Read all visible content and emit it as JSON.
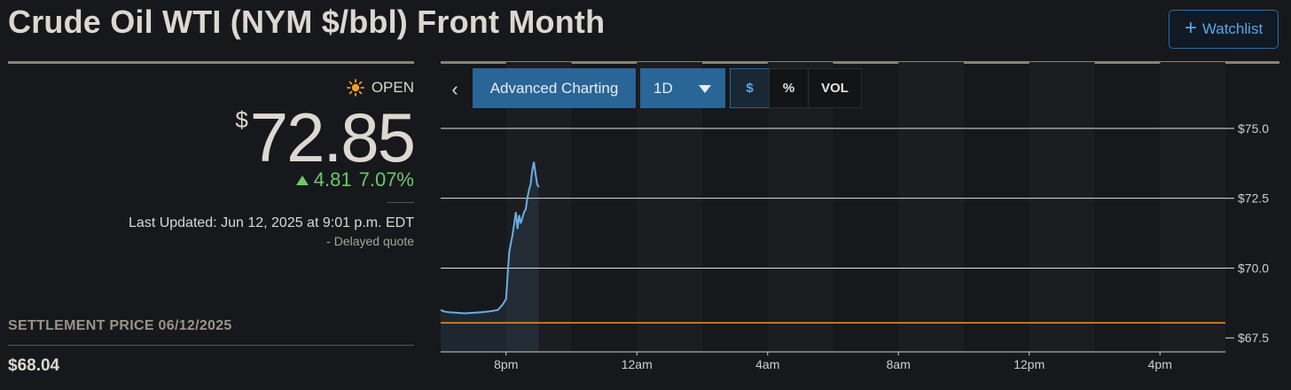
{
  "header": {
    "title": "Crude Oil WTI (NYM $/bbl) Front Month",
    "watchlist_label": "Watchlist",
    "watchlist_plus": "+"
  },
  "quote": {
    "status": "OPEN",
    "currency_symbol": "$",
    "price": "72.85",
    "change": "4.81",
    "change_percent": "7.07%",
    "last_updated": "Last Updated: Jun 12, 2025 at 9:01 p.m. EDT",
    "delayed_note": "-  Delayed quote"
  },
  "settlement": {
    "label": "SETTLEMENT PRICE 06/12/2025",
    "value": "$68.04"
  },
  "toolbar": {
    "back_glyph": "‹",
    "advanced_label": "Advanced Charting",
    "period_label": "1D",
    "buttons": [
      "$",
      "%",
      "VOL"
    ],
    "active_button": "$"
  },
  "colors": {
    "accent": "#2a6597",
    "up": "#6ec86a",
    "line": "#6aaee4",
    "settle_line": "#ff8c1a",
    "gold_rule": "#8a826f"
  },
  "chart_data": {
    "type": "line",
    "x_ticks": [
      "8pm",
      "12am",
      "4am",
      "8am",
      "12pm",
      "4pm"
    ],
    "y_ticks": [
      "$75.0",
      "$72.5",
      "$70.0",
      "$67.5"
    ],
    "y_tick_values": [
      75.0,
      72.5,
      70.0,
      67.5
    ],
    "ylim": [
      67.0,
      75.6
    ],
    "x_range_hours": [
      18,
      42
    ],
    "settlement_value": 68.04,
    "grid": true,
    "series": [
      {
        "x_hours": [
          18.0,
          18.1,
          18.25,
          18.5,
          18.75,
          19.0,
          19.25,
          19.5,
          19.75,
          19.9,
          20.0,
          20.05,
          20.1,
          20.2,
          20.25,
          20.3,
          20.35,
          20.4,
          20.45,
          20.5,
          20.55,
          20.6,
          20.65,
          20.7,
          20.75,
          20.8,
          20.85,
          20.9,
          20.95,
          21.0
        ],
        "values": [
          68.5,
          68.45,
          68.42,
          68.4,
          68.38,
          68.4,
          68.42,
          68.45,
          68.5,
          68.7,
          68.9,
          69.8,
          70.6,
          71.2,
          71.6,
          72.0,
          71.4,
          71.9,
          71.6,
          71.8,
          72.0,
          72.1,
          72.5,
          72.8,
          73.0,
          73.5,
          73.8,
          73.4,
          73.0,
          72.9
        ]
      }
    ]
  }
}
